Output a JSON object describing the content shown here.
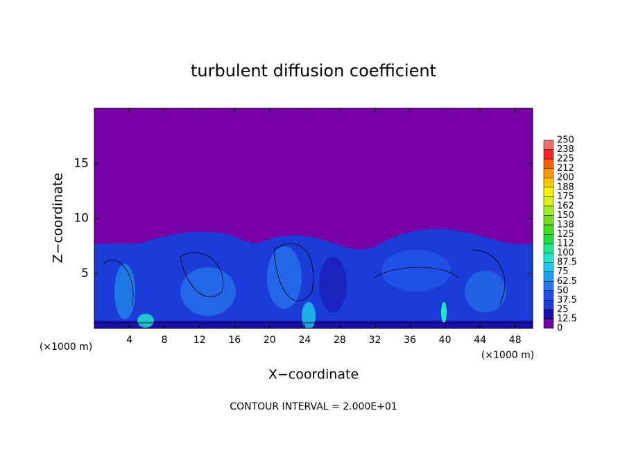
{
  "chart_data": {
    "type": "contour",
    "title": "turbulent diffusion coefficient",
    "x_label": "X−coordinate",
    "y_label": "Z−coordinate",
    "x_unit": "(×1000 m)",
    "x_unit_right": "(×1000 m)",
    "footer": "CONTOUR INTERVAL = 2.000E+01",
    "xlim": [
      0,
      50
    ],
    "xticks": [
      4,
      8,
      12,
      16,
      20,
      24,
      28,
      32,
      36,
      40,
      44,
      48
    ],
    "ylim": [
      0,
      20
    ],
    "yticks": [
      5,
      10,
      15
    ],
    "colorbar": {
      "levels": [
        0,
        12.5,
        25,
        37.5,
        50,
        62.5,
        75,
        87.5,
        100,
        112,
        125,
        138,
        150,
        162,
        175,
        188,
        200,
        212,
        225,
        238,
        250
      ],
      "colors": [
        "#7800a8",
        "#1a10b0",
        "#1c3cd8",
        "#2050e8",
        "#2878f0",
        "#1ea0f0",
        "#20c8f0",
        "#20e8c8",
        "#20e890",
        "#20e040",
        "#40e020",
        "#70e020",
        "#a0f020",
        "#d8f020",
        "#f8f000",
        "#f8c800",
        "#f89800",
        "#f86000",
        "#f82020",
        "#f07070"
      ]
    }
  }
}
